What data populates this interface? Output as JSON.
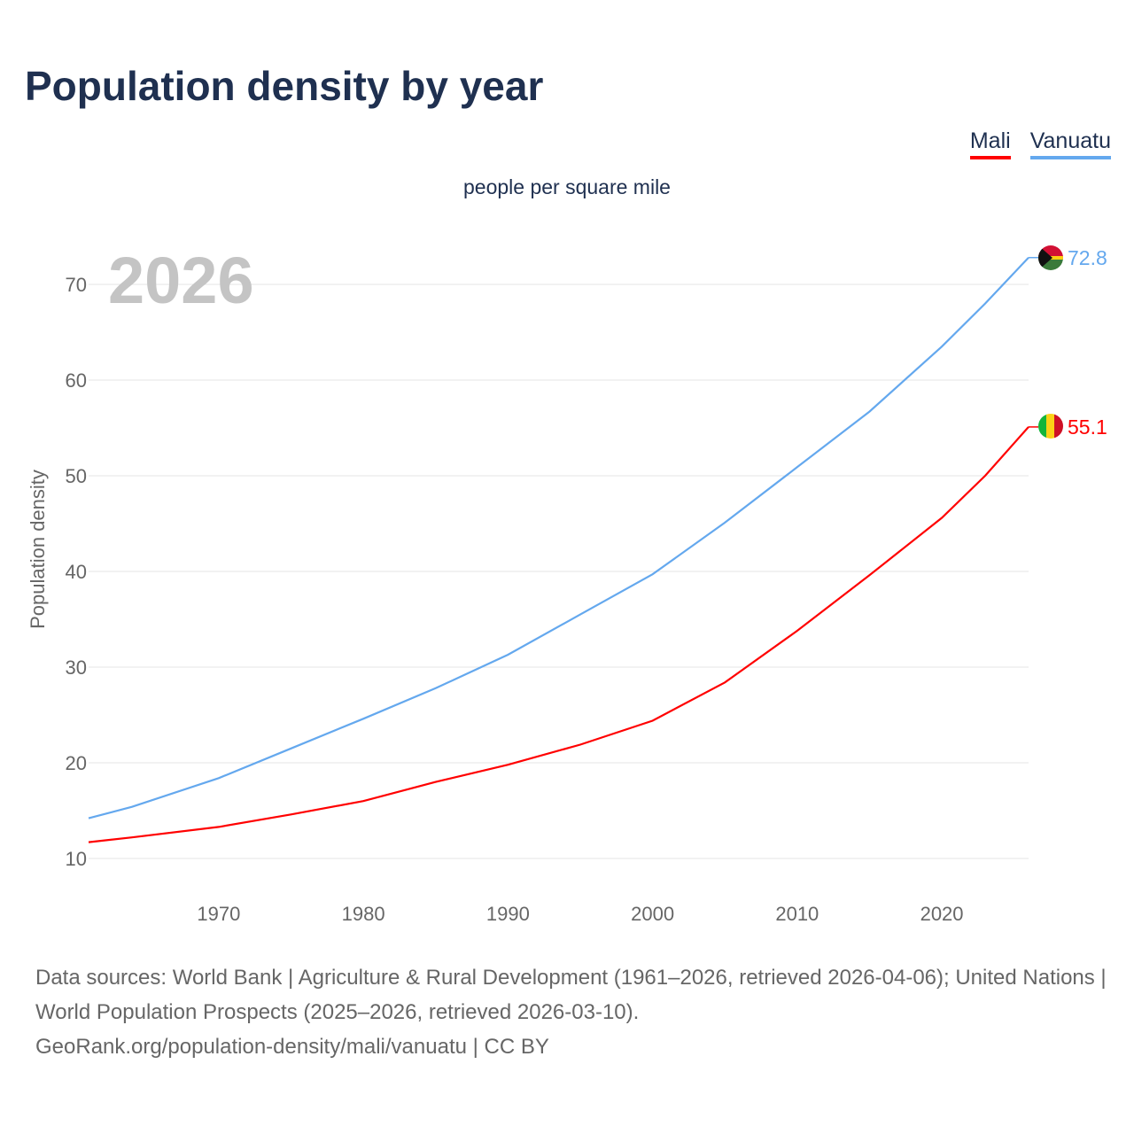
{
  "title": "Population density by year",
  "subtitle": "people per square mile",
  "year_label": "2026",
  "source_text": "Data sources: World Bank | Agriculture & Rural Development (1961–2026, retrieved 2026-04-06); United Nations | World Population Prospects (2025–2026, retrieved 2026-03-10).",
  "source_link": "GeoRank.org/population-density/mali/vanuatu | CC BY",
  "chart_data": {
    "type": "line",
    "title": "Population density by year",
    "subtitle": "people per square mile",
    "xlabel": "",
    "ylabel": "Population density",
    "xlim": [
      1961,
      2026
    ],
    "ylim": [
      10,
      73
    ],
    "xticks": [
      1970,
      1980,
      1990,
      2000,
      2010,
      2020
    ],
    "yticks": [
      10,
      20,
      30,
      40,
      50,
      60,
      70
    ],
    "grid": true,
    "legend": "top-right",
    "x": [
      1961,
      1964,
      1970,
      1975,
      1980,
      1985,
      1990,
      1995,
      2000,
      2005,
      2010,
      2015,
      2020,
      2023,
      2026
    ],
    "series": [
      {
        "name": "Mali",
        "color": "#ff0000",
        "end_label": "55.1",
        "values": [
          11.7,
          12.2,
          13.3,
          14.6,
          16.0,
          18.0,
          19.8,
          21.9,
          24.4,
          28.4,
          33.8,
          39.6,
          45.6,
          50.0,
          55.1
        ]
      },
      {
        "name": "Vanuatu",
        "color": "#64a8ee",
        "end_label": "72.8",
        "values": [
          14.2,
          15.4,
          18.4,
          21.5,
          24.6,
          27.8,
          31.3,
          35.5,
          39.7,
          45.1,
          50.9,
          56.7,
          63.5,
          68.0,
          72.8
        ]
      }
    ]
  }
}
